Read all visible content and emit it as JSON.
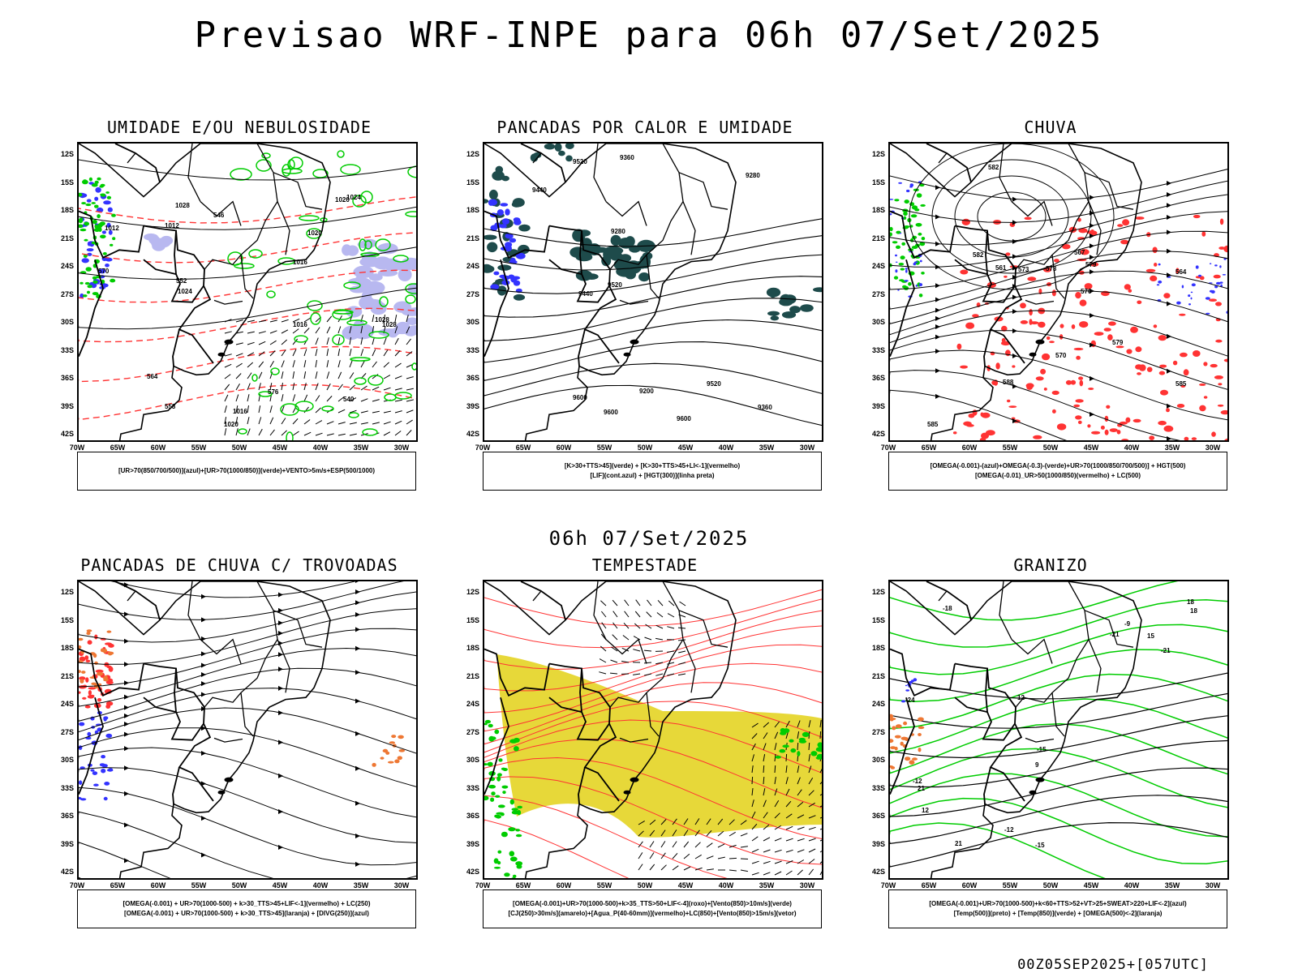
{
  "title": "Previsao WRF-INPE  para 06h 07/Set/2025",
  "mid_title": "06h 07/Set/2025",
  "footer_stamp": "00Z05SEP2025+[057UTC]",
  "lat_labels": [
    "12S",
    "15S",
    "18S",
    "21S",
    "24S",
    "27S",
    "30S",
    "33S",
    "36S",
    "39S",
    "42S"
  ],
  "lon_labels": [
    "70W",
    "65W",
    "60W",
    "55W",
    "50W",
    "45W",
    "40W",
    "35W",
    "30W"
  ],
  "colors": {
    "blue": "#3333ff",
    "green": "#00cc00",
    "red": "#ff3333",
    "lilac": "#b8b8f0",
    "teal": "#1e4b4b",
    "orange": "#ee7733",
    "yellow": "#e6d62e"
  },
  "panels": [
    {
      "title": "UMIDADE E/OU NEBULOSIDADE",
      "legend": [
        "[UR>70(850/700/500)](azul)+[UR>70(1000/850)](verde)+VENTO>5m/s+ESP(500/1000)"
      ],
      "labels": [
        "1012",
        "1012",
        "1016",
        "1016",
        "1020",
        "1020",
        "1016",
        "1024",
        "1024",
        "1028",
        "1028",
        "1028",
        "1020",
        "564",
        "570",
        "558",
        "552",
        "546",
        "540",
        "576"
      ]
    },
    {
      "title": "PANCADAS POR CALOR E UMIDADE",
      "legend": [
        "[K>30+TTS>45](verde) + [K>30+TTS>45+LI<-1](vermelho)",
        "[LIF](cont.azul) + [HGT(300)](linha preta)"
      ],
      "labels": [
        "9600",
        "9600",
        "9600",
        "9520",
        "9520",
        "9440",
        "9440",
        "9360",
        "9360",
        "9280",
        "9280",
        "9200",
        "9520"
      ]
    },
    {
      "title": "CHUVA",
      "legend": [
        "[OMEGA(-0.001)-(azul)+OMEGA(-0.3)-(verde)+UR>70(1000/850/700/500)] + HGT(500)",
        "[OMEGA(-0.01)_UR>50(1000/850)(vermelho) + LC(500)"
      ],
      "labels": [
        "585",
        "585",
        "582",
        "582",
        "579",
        "579",
        "576",
        "573",
        "573",
        "570",
        "567",
        "564",
        "561",
        "588"
      ]
    },
    {
      "title": "PANCADAS DE CHUVA C/ TROVOADAS",
      "legend": [
        "[OMEGA(-0.001) + UR>70(1000-500) + k>30_TTS>45+LIF<-1](vermelho) + LC(250)",
        "[OMEGA(-0.001) + UR>70(1000-500) + k>30_TTS>45](laranja) + [DIVG(250)](azul)"
      ],
      "labels": []
    },
    {
      "title": "TEMPESTADE",
      "legend": [
        "[OMEGA(-0.001)+UR>70(1000-500)+k>35_TTS>50+LIF<-4](roxo)+[Vento(850)>10m/s](verde)",
        "[CJ(250)>30m/s](amarelo)+[Agua_P(40-60mm)](vermelho)+LC(850)+[Vento(850)>15m/s](vetor)"
      ],
      "labels": []
    },
    {
      "title": "GRANIZO",
      "legend": [
        "[OMEGA(-0.001)+UR>70(1000-500)+k<60+TTS>52+VT>25+SWEAT>220+LIF<-2](azul)",
        "[Temp(500)](preto) + [Temp(850)](verde) + [OMEGA(500)<-2](laranja)"
      ],
      "labels": [
        "-9",
        "-12",
        "-12",
        "-15",
        "-15",
        "-18",
        "-21",
        "-21",
        "-24",
        "15",
        "18",
        "18",
        "21",
        "21",
        "12",
        "12",
        "9"
      ]
    }
  ]
}
